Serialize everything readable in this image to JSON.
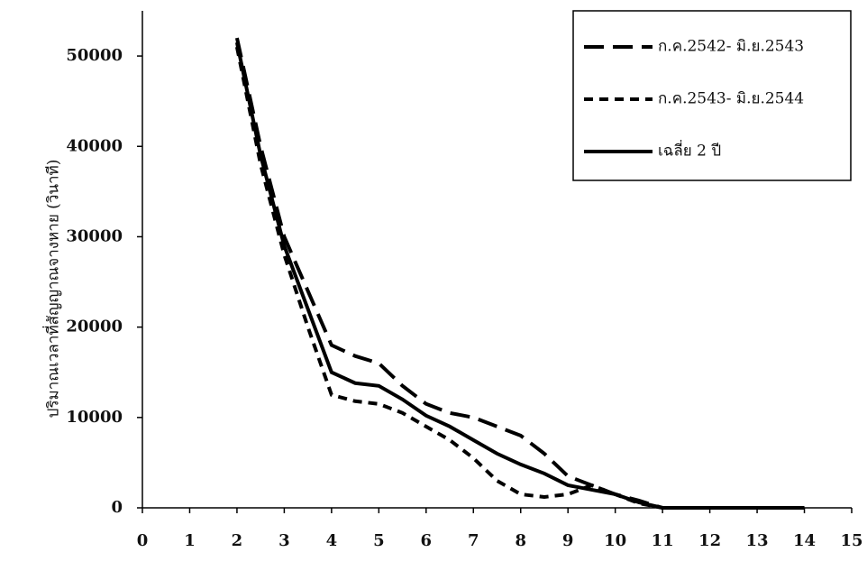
{
  "chart_data": {
    "type": "line",
    "y_label": "ปริมาณเวลาที่สัญญาณจางหาย (วินาที)",
    "x": [
      2,
      2.5,
      3,
      3.5,
      4,
      4.5,
      5,
      5.5,
      6,
      6.5,
      7,
      7.5,
      8,
      8.5,
      9,
      9.5,
      10,
      10.5,
      11,
      12,
      13,
      14
    ],
    "series": [
      {
        "name": "ก.ค.2542- มิ.ย.2543",
        "color": "#000000",
        "dash": "22 10",
        "values": [
          52000,
          40000,
          30000,
          24000,
          18000,
          16800,
          16000,
          13500,
          11500,
          10500,
          10000,
          9000,
          8000,
          6000,
          3500,
          2500,
          1500,
          800,
          0,
          0,
          0,
          0
        ]
      },
      {
        "name": "ก.ค.2543- มิ.ย.2544",
        "color": "#000000",
        "dash": "10 7",
        "values": [
          51000,
          38000,
          28000,
          20000,
          12500,
          11800,
          11500,
          10500,
          9000,
          7500,
          5500,
          3000,
          1500,
          1200,
          1500,
          2500,
          1500,
          500,
          0,
          0,
          0,
          0
        ]
      },
      {
        "name": "เฉลี่ย 2 ปี",
        "color": "#000000",
        "dash": "",
        "values": [
          51500,
          39000,
          29000,
          22000,
          15000,
          13800,
          13500,
          12000,
          10200,
          9000,
          7500,
          6000,
          4800,
          3800,
          2500,
          2000,
          1500,
          600,
          0,
          0,
          0,
          0
        ]
      }
    ],
    "xlim": [
      0,
      15
    ],
    "xticks": [
      0,
      1,
      2,
      3,
      4,
      5,
      6,
      7,
      8,
      9,
      10,
      11,
      12,
      13,
      14,
      15
    ],
    "ylim": [
      0,
      55000
    ],
    "yticks": [
      0,
      10000,
      20000,
      30000,
      40000,
      50000
    ],
    "legend": "upper right"
  }
}
